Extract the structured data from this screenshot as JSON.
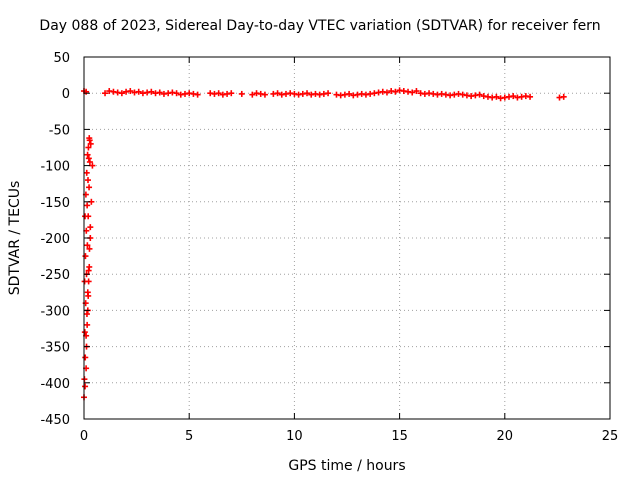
{
  "chart_data": {
    "type": "scatter",
    "title": "Day 088 of 2023, Sidereal Day-to-day VTEC variation (SDTVAR) for receiver fern",
    "xlabel": "GPS time / hours",
    "ylabel": "SDTVAR / TECUs",
    "xlim": [
      0,
      25
    ],
    "ylim": [
      -450,
      50
    ],
    "xticks": [
      0,
      5,
      10,
      15,
      20,
      25
    ],
    "yticks": [
      -450,
      -400,
      -350,
      -300,
      -250,
      -200,
      -150,
      -100,
      -50,
      0,
      50
    ],
    "grid": true,
    "marker": "plus",
    "series_color": "#ff0000",
    "series": [
      {
        "x": [
          0.0,
          0.05,
          0.1,
          0.12,
          0.15,
          0.18,
          0.2,
          0.22,
          0.25,
          0.3,
          0.35,
          0.4,
          0.02,
          0.06,
          0.1,
          0.14,
          0.18,
          0.22,
          0.26,
          0.3,
          0.04,
          0.08,
          0.12,
          0.16,
          0.2,
          0.24,
          0.28,
          0.32,
          0.03,
          0.07,
          0.11,
          0.15,
          0.19,
          0.23,
          0.27,
          0.05,
          0.09,
          0.13,
          0.17,
          0.21,
          0.25
        ],
        "y": [
          -420,
          -405,
          -380,
          -350,
          -320,
          -300,
          -280,
          -260,
          -240,
          -200,
          -150,
          -100,
          -395,
          -365,
          -335,
          -305,
          -275,
          -245,
          -215,
          -185,
          -330,
          -290,
          -250,
          -210,
          -170,
          -130,
          -95,
          -70,
          -260,
          -225,
          -190,
          -155,
          -120,
          -90,
          -65,
          -170,
          -140,
          -110,
          -85,
          -75,
          -62
        ]
      },
      {
        "x": [
          0.0,
          0.1,
          1.0,
          1.2,
          1.4,
          1.6,
          1.8,
          2.0,
          2.2,
          2.4,
          2.6,
          2.8,
          3.0,
          3.2,
          3.4,
          3.6,
          3.8,
          4.0,
          4.2,
          4.4,
          4.6,
          4.8,
          5.0,
          5.2,
          5.4,
          6.0,
          6.2,
          6.4,
          6.6,
          6.8,
          7.0,
          7.5,
          8.0,
          8.2,
          8.4,
          8.6,
          9.0,
          9.2,
          9.4,
          9.6,
          9.8,
          10.0,
          10.2,
          10.4,
          10.6,
          10.8,
          11.0,
          11.2,
          11.4,
          11.6,
          12.0,
          12.2,
          12.4,
          12.6,
          12.8,
          13.0,
          13.2,
          13.4,
          13.6,
          13.8,
          14.0,
          14.2,
          14.4,
          14.6,
          14.8,
          15.0,
          15.2,
          15.4,
          15.6,
          15.8,
          16.0,
          16.2,
          16.4,
          16.6,
          16.8,
          17.0,
          17.2,
          17.4,
          17.6,
          17.8,
          18.0,
          18.2,
          18.4,
          18.6,
          18.8,
          19.0,
          19.2,
          19.4,
          19.6,
          19.8,
          20.0,
          20.2,
          20.4,
          20.6,
          20.8,
          21.0,
          21.2,
          22.6,
          22.8
        ],
        "y": [
          3,
          2,
          0,
          3,
          2,
          1,
          0,
          2,
          3,
          1,
          2,
          0,
          1,
          2,
          0,
          1,
          -1,
          0,
          1,
          0,
          -2,
          -1,
          0,
          -1,
          -2,
          0,
          -1,
          0,
          -2,
          -1,
          0,
          -1,
          -2,
          0,
          -1,
          -2,
          -1,
          0,
          -2,
          -1,
          0,
          -1,
          -2,
          -1,
          0,
          -2,
          -1,
          -2,
          -1,
          0,
          -2,
          -3,
          -2,
          -1,
          -3,
          -2,
          -1,
          -2,
          -1,
          0,
          1,
          2,
          1,
          3,
          2,
          4,
          3,
          2,
          1,
          3,
          0,
          -1,
          0,
          -1,
          -2,
          -1,
          -2,
          -3,
          -2,
          -1,
          -2,
          -3,
          -4,
          -3,
          -2,
          -4,
          -5,
          -6,
          -5,
          -7,
          -6,
          -5,
          -4,
          -6,
          -5,
          -4,
          -5,
          -6,
          -5
        ]
      }
    ]
  }
}
